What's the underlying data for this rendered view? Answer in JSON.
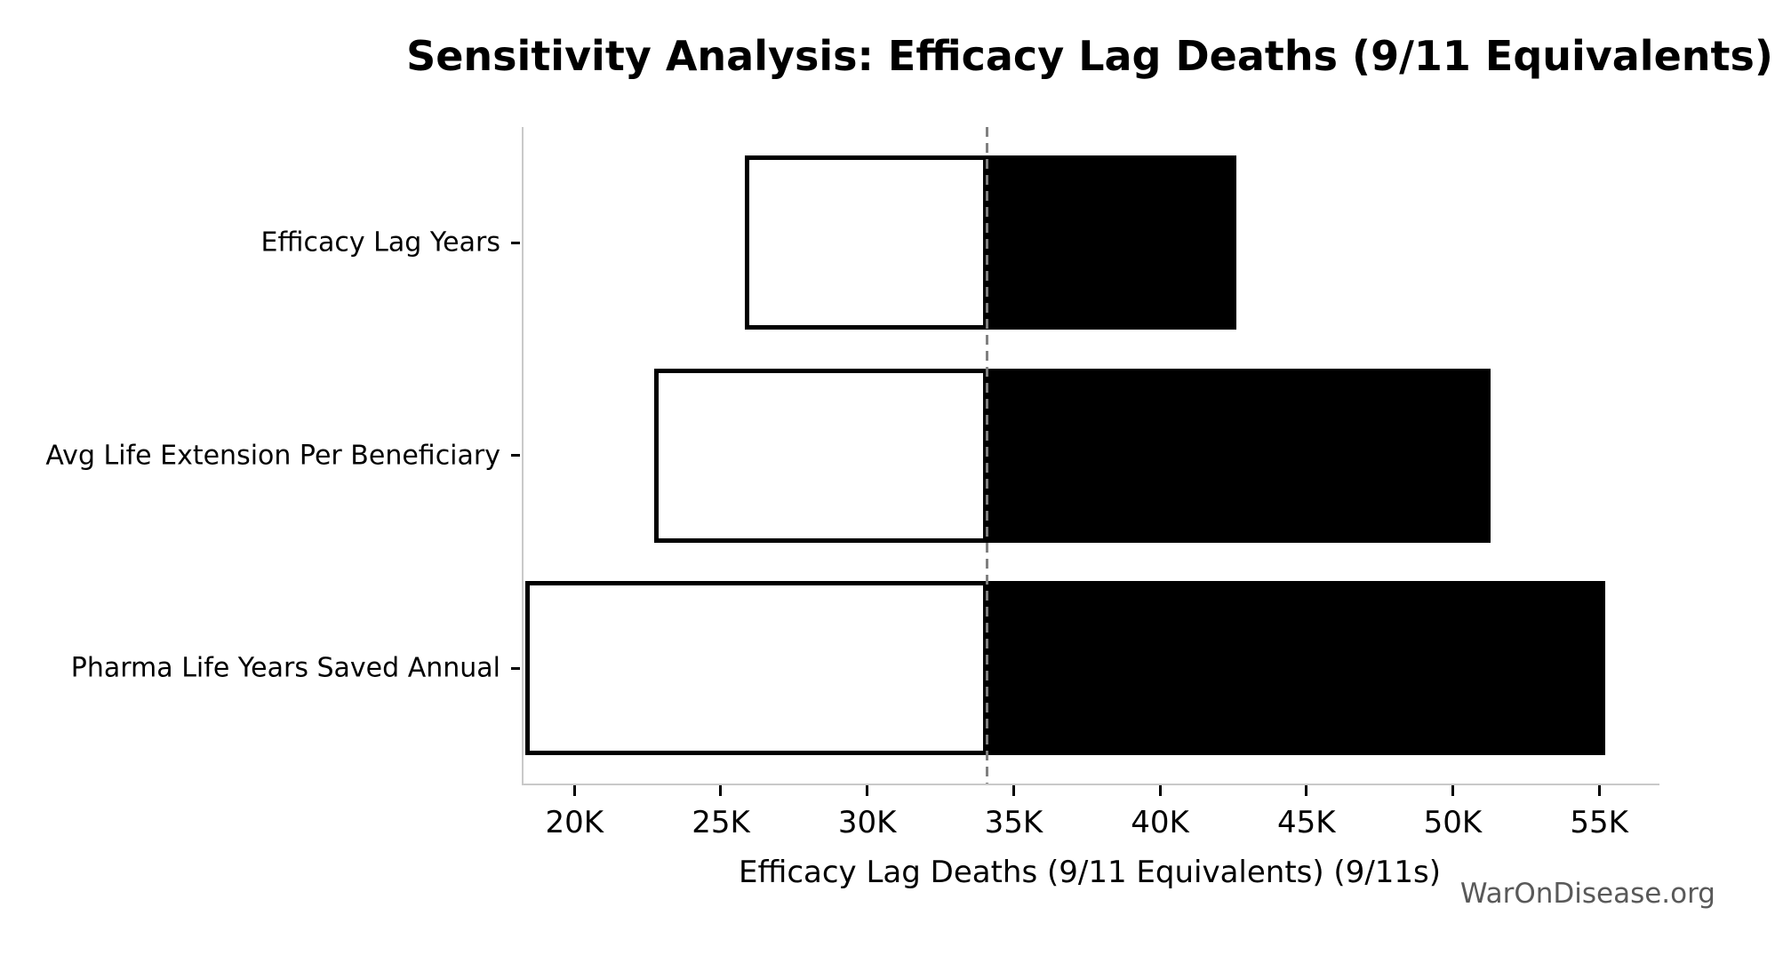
{
  "title": "Sensitivity Analysis: Efficacy Lag Deaths (9/11 Equivalents)",
  "watermark": "WarOnDisease.org",
  "chart_data": {
    "type": "bar",
    "subtype": "tornado",
    "orientation": "horizontal",
    "title": "Sensitivity Analysis: Efficacy Lag Deaths (9/11 Equivalents)",
    "xlabel": "Efficacy Lag Deaths (9/11 Equivalents) (9/11s)",
    "ylabel": "",
    "categories": [
      "Efficacy Lag Years",
      "Avg Life Extension Per Beneficiary",
      "Pharma Life Years Saved Annual"
    ],
    "baseline": 34100,
    "series": [
      {
        "name": "low",
        "values": [
          25900,
          22800,
          18400
        ]
      },
      {
        "name": "high",
        "values": [
          42600,
          51300,
          55200
        ]
      }
    ],
    "x_ticks": [
      {
        "value": 20000,
        "label": "20K"
      },
      {
        "value": 25000,
        "label": "25K"
      },
      {
        "value": 30000,
        "label": "30K"
      },
      {
        "value": 35000,
        "label": "35K"
      },
      {
        "value": 40000,
        "label": "40K"
      },
      {
        "value": 45000,
        "label": "45K"
      },
      {
        "value": 50000,
        "label": "50K"
      },
      {
        "value": 55000,
        "label": "55K"
      }
    ],
    "xlim": [
      18200,
      57000
    ],
    "grid": false,
    "legend": false,
    "colors": {
      "bar_high_fill": "#000000",
      "bar_low_fill": "#ffffff",
      "bar_edge": "#000000",
      "baseline": "#808080",
      "spine": "#c9c9c9",
      "tick": "#000000",
      "text": "#000000",
      "watermark": "#595959"
    }
  }
}
